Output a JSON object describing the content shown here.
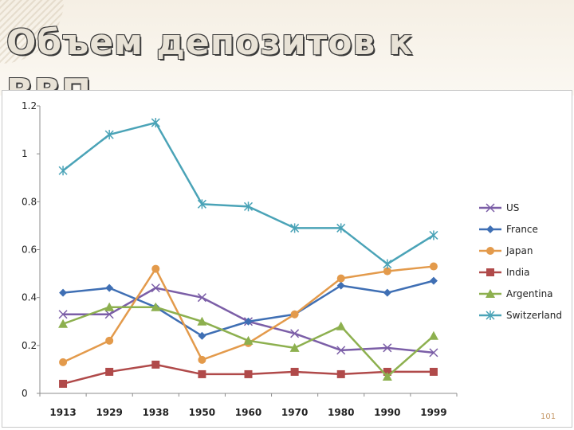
{
  "slide": {
    "title": "Объем депозитов к",
    "title_cont": "ВВП",
    "page_number": "101"
  },
  "chart_data": {
    "type": "line",
    "categories": [
      "1913",
      "1929",
      "1938",
      "1950",
      "1960",
      "1970",
      "1980",
      "1990",
      "1999"
    ],
    "ylim": [
      0,
      1.2
    ],
    "yticks": [
      "0",
      "0.2",
      "0.4",
      "0.6",
      "0.8",
      "1",
      "1.2"
    ],
    "grid": false,
    "legend_position": "right",
    "series": [
      {
        "name": "US",
        "color": "#7b5ea7",
        "marker": "x",
        "values": [
          0.33,
          0.33,
          0.44,
          0.4,
          0.3,
          0.25,
          0.18,
          0.19,
          0.17
        ]
      },
      {
        "name": "France",
        "color": "#3f6fb4",
        "marker": "diamond",
        "values": [
          0.42,
          0.44,
          0.36,
          0.24,
          0.3,
          0.33,
          0.45,
          0.42,
          0.47
        ]
      },
      {
        "name": "Japan",
        "color": "#e39a4b",
        "marker": "circle",
        "values": [
          0.13,
          0.22,
          0.52,
          0.14,
          0.21,
          0.33,
          0.48,
          0.51,
          0.53
        ]
      },
      {
        "name": "India",
        "color": "#b04a4a",
        "marker": "square",
        "values": [
          0.04,
          0.09,
          0.12,
          0.08,
          0.08,
          0.09,
          0.08,
          0.09,
          0.09
        ]
      },
      {
        "name": "Argentina",
        "color": "#8db04f",
        "marker": "triangle",
        "values": [
          0.29,
          0.36,
          0.36,
          0.3,
          0.22,
          0.19,
          0.28,
          0.07,
          0.24
        ]
      },
      {
        "name": "Switzerland",
        "color": "#4aa3b7",
        "marker": "star",
        "values": [
          0.93,
          1.08,
          1.13,
          0.79,
          0.78,
          0.69,
          0.69,
          0.54,
          0.66
        ]
      }
    ]
  }
}
